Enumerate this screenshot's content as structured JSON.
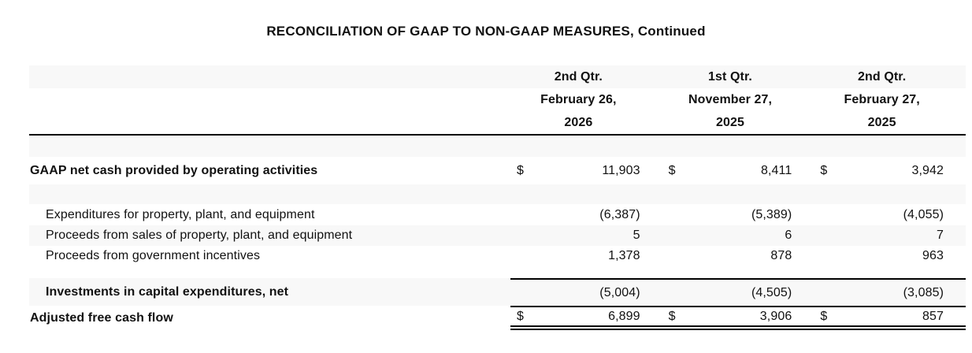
{
  "title": "RECONCILIATION OF GAAP TO NON-GAAP MEASURES, Continued",
  "currency": "$",
  "columns": [
    {
      "qtr": "2nd Qtr.",
      "month_day": "February 26,",
      "year": "2026"
    },
    {
      "qtr": "1st Qtr.",
      "month_day": "November 27,",
      "year": "2025"
    },
    {
      "qtr": "2nd Qtr.",
      "month_day": "February 27,",
      "year": "2025"
    }
  ],
  "rows": [
    {
      "label": "GAAP net cash provided by operating activities",
      "values": [
        "11,903",
        "8,411",
        "3,942"
      ]
    },
    {
      "label": "Expenditures for property, plant, and equipment",
      "values": [
        "(6,387)",
        "(5,389)",
        "(4,055)"
      ]
    },
    {
      "label": "Proceeds from sales of property, plant, and equipment",
      "values": [
        "5",
        "6",
        "7"
      ]
    },
    {
      "label": "Proceeds from government incentives",
      "values": [
        "1,378",
        "878",
        "963"
      ]
    },
    {
      "label": "Investments in capital expenditures, net",
      "values": [
        "(5,004)",
        "(4,505)",
        "(3,085)"
      ]
    },
    {
      "label": "Adjusted free cash flow",
      "values": [
        "6,899",
        "3,906",
        "857"
      ]
    }
  ],
  "colors": {
    "stripe": "#f8f8f8",
    "rule": "#000000",
    "text": "#111111"
  }
}
